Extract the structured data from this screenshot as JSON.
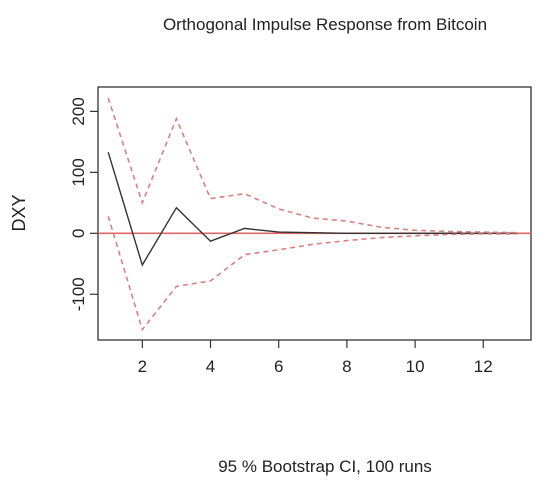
{
  "chart_data": {
    "type": "line",
    "title": "Orthogonal Impulse Response from Bitcoin",
    "xlabel": "95 % Bootstrap CI,  100 runs",
    "ylabel": "DXY",
    "xlim": [
      0.7,
      13.4
    ],
    "ylim": [
      -175,
      240
    ],
    "x_ticks": [
      2,
      4,
      6,
      8,
      10,
      12
    ],
    "y_ticks": [
      -100,
      0,
      100,
      200
    ],
    "grid": false,
    "zero_line": 0,
    "x": [
      1,
      2,
      3,
      4,
      5,
      6,
      7,
      8,
      9,
      10,
      11,
      12,
      13
    ],
    "series": [
      {
        "role": "estimate",
        "color": "#333333",
        "values": [
          133,
          -52,
          42,
          -13,
          8,
          2,
          1,
          0,
          0,
          0,
          0,
          0,
          0
        ]
      },
      {
        "role": "upper",
        "color": "#d98080",
        "values": [
          222,
          50,
          188,
          57,
          65,
          40,
          25,
          20,
          10,
          5,
          3,
          2,
          1
        ]
      },
      {
        "role": "lower",
        "color": "#d98080",
        "values": [
          28,
          -158,
          -87,
          -78,
          -35,
          -27,
          -18,
          -12,
          -7,
          -4,
          -2,
          -1,
          -1
        ]
      }
    ],
    "colors": {
      "zero_line": "#e06666",
      "axis": "#333333"
    }
  }
}
